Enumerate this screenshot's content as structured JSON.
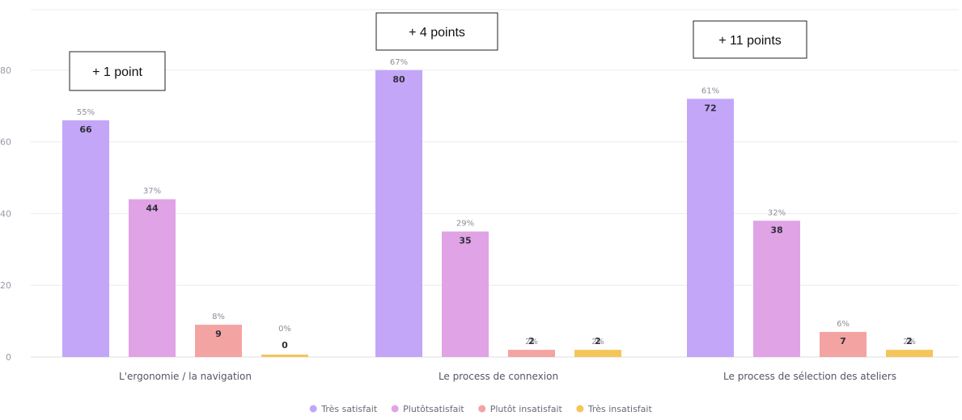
{
  "chart_data": {
    "type": "bar",
    "categories": [
      "L'ergonomie / la navigation",
      "Le process de connexion",
      "Le process de sélection des ateliers"
    ],
    "series": [
      {
        "name": "Très satisfait",
        "color": "#c3a6f8",
        "values": [
          66,
          80,
          72
        ],
        "percent_labels": [
          "55%",
          "67%",
          "61%"
        ]
      },
      {
        "name": "Plutôtsatisfait",
        "color": "#e0a3e6",
        "values": [
          44,
          35,
          38
        ],
        "percent_labels": [
          "37%",
          "29%",
          "32%"
        ]
      },
      {
        "name": "Plutôt insatisfait",
        "color": "#f4a3a3",
        "values": [
          9,
          2,
          7
        ],
        "percent_labels": [
          "8%",
          "2%",
          "6%"
        ]
      },
      {
        "name": "Très insatisfait",
        "color": "#f5c55a",
        "values": [
          0,
          2,
          2
        ],
        "percent_labels": [
          "0%",
          "2%",
          "2%"
        ]
      }
    ],
    "y_ticks": [
      0,
      20,
      40,
      60,
      80
    ],
    "ylim": [
      0,
      95
    ],
    "grid": true,
    "legend_position": "bottom-center",
    "annotations": [
      "+ 1 point",
      "+ 4 points",
      "+ 11 points"
    ]
  }
}
